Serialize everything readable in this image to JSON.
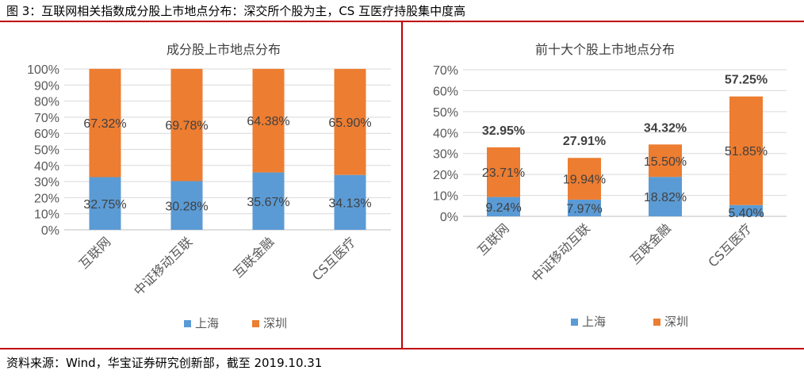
{
  "figure_title": "图 3：互联网相关指数成分股上市地点分布：深交所个股为主，CS 互医疗持股集中度高",
  "source": "资料来源：Wind，华宝证券研究创新部，截至 2019.10.31",
  "colors": {
    "shanghai": "#5B9BD5",
    "shenzhen": "#ED7D31",
    "grid": "#D9D9D9",
    "accent_rule": "#C00000"
  },
  "chart_data": [
    {
      "type": "bar",
      "stacked": true,
      "title": "成分股上市地点分布",
      "categories": [
        "互联网",
        "中证移动互联",
        "互联金融",
        "CS互医疗"
      ],
      "series": [
        {
          "name": "上海",
          "values": [
            32.75,
            30.28,
            35.67,
            34.13
          ],
          "labels": [
            "32.75%",
            "30.28%",
            "35.67%",
            "34.13%"
          ]
        },
        {
          "name": "深圳",
          "values": [
            67.32,
            69.78,
            64.38,
            65.9
          ],
          "labels": [
            "67.32%",
            "69.78%",
            "64.38%",
            "65.90%"
          ]
        }
      ],
      "ylim": [
        0,
        100
      ],
      "yticks": [
        "0%",
        "10%",
        "20%",
        "30%",
        "40%",
        "50%",
        "60%",
        "70%",
        "80%",
        "90%",
        "100%"
      ],
      "legend": "bottom",
      "grid": true
    },
    {
      "type": "bar",
      "stacked": true,
      "title": "前十大个股上市地点分布",
      "categories": [
        "互联网",
        "中证移动互联",
        "互联金融",
        "CS互医疗"
      ],
      "series": [
        {
          "name": "上海",
          "values": [
            9.24,
            7.97,
            18.82,
            5.4
          ],
          "labels": [
            "9.24%",
            "7.97%",
            "18.82%",
            "5.40%"
          ]
        },
        {
          "name": "深圳",
          "values": [
            23.71,
            19.94,
            15.5,
            51.85
          ],
          "labels": [
            "23.71%",
            "19.94%",
            "15.50%",
            "51.85%"
          ]
        }
      ],
      "totals": [
        "32.95%",
        "27.91%",
        "34.32%",
        "57.25%"
      ],
      "ylim": [
        0,
        70
      ],
      "yticks": [
        "0%",
        "10%",
        "20%",
        "30%",
        "40%",
        "50%",
        "60%",
        "70%"
      ],
      "legend": "bottom",
      "grid": true
    }
  ]
}
